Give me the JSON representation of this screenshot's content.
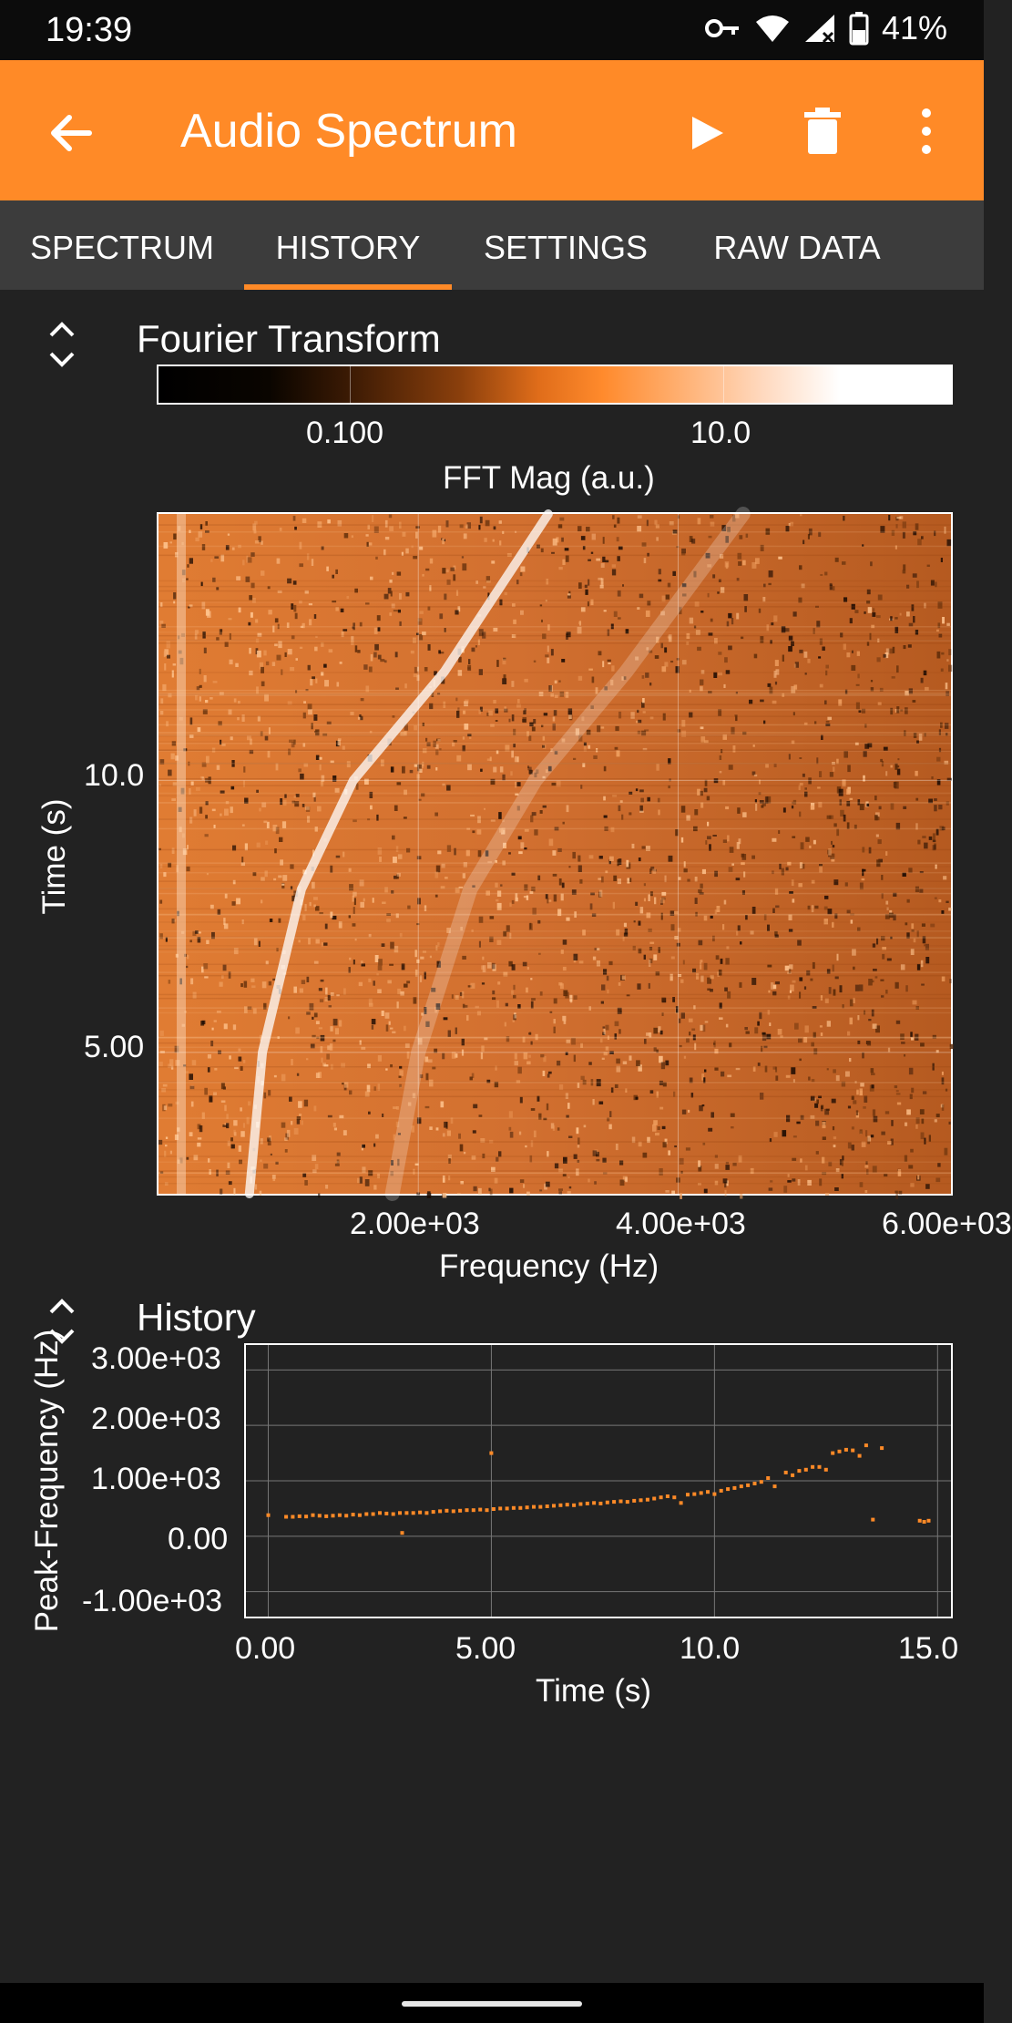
{
  "status_bar": {
    "time": "19:39",
    "battery": "41%",
    "icons": [
      "key-icon",
      "wifi-icon",
      "signal-icon",
      "battery-icon"
    ]
  },
  "app_bar": {
    "title": "Audio Spectrum",
    "background": "#ff8a27",
    "icons": [
      "back-arrow-icon",
      "play-icon",
      "trash-icon",
      "more-vert-icon"
    ]
  },
  "tabs": [
    {
      "label": "SPECTRUM",
      "active": false
    },
    {
      "label": "HISTORY",
      "active": true
    },
    {
      "label": "SETTINGS",
      "active": false
    },
    {
      "label": "RAW DATA",
      "active": false
    }
  ],
  "fourier": {
    "title": "Fourier Transform",
    "colorbar_label": "FFT Mag (a.u.)",
    "colorbar_ticks": [
      "0.100",
      "10.0"
    ],
    "xlabel": "Frequency (Hz)",
    "ylabel": "Time (s)",
    "xticks": [
      "2.00e+03",
      "4.00e+03",
      "6.00e+03"
    ],
    "yticks": [
      "10.0",
      "5.00"
    ]
  },
  "history": {
    "title": "History",
    "xlabel": "Time (s)",
    "ylabel": "Peak-Frequency (Hz)",
    "xticks": [
      "0.00",
      "5.00",
      "10.0",
      "15.0"
    ],
    "yticks": [
      "3.00e+03",
      "2.00e+03",
      "1.00e+03",
      "0.00",
      "-1.00e+03"
    ]
  },
  "chart_data": [
    {
      "type": "heatmap",
      "title": "Fourier Transform",
      "xlabel": "Frequency (Hz)",
      "ylabel": "Time (s)",
      "colorbar_label": "FFT Mag (a.u.)",
      "xlim": [
        0,
        6100
      ],
      "ylim": [
        2.4,
        14.9
      ],
      "colormap": [
        "#000000",
        "#8a3f0c",
        "#ff8a2c",
        "#ffffff"
      ],
      "ridges_hz_vs_time": [
        {
          "t": [
            2.4,
            5,
            8,
            10,
            12,
            14.9
          ],
          "f": [
            700,
            800,
            1100,
            1500,
            2200,
            3000
          ]
        },
        {
          "t": [
            2.4,
            5,
            8,
            10,
            12,
            14.9
          ],
          "f": [
            1800,
            2000,
            2400,
            2900,
            3600,
            4500
          ]
        }
      ]
    },
    {
      "type": "scatter",
      "title": "History",
      "xlabel": "Time (s)",
      "ylabel": "Peak-Frequency (Hz)",
      "xlim": [
        -0.5,
        15.3
      ],
      "ylim": [
        -1450,
        3450
      ],
      "color": "#ff8a27",
      "points": [
        [
          0.0,
          380
        ],
        [
          0.4,
          350
        ],
        [
          0.55,
          350
        ],
        [
          0.7,
          360
        ],
        [
          0.85,
          355
        ],
        [
          1.0,
          380
        ],
        [
          1.15,
          370
        ],
        [
          1.3,
          360
        ],
        [
          1.45,
          370
        ],
        [
          1.6,
          380
        ],
        [
          1.75,
          370
        ],
        [
          1.9,
          390
        ],
        [
          2.05,
          380
        ],
        [
          2.2,
          400
        ],
        [
          2.35,
          400
        ],
        [
          2.5,
          420
        ],
        [
          2.65,
          410
        ],
        [
          2.8,
          400
        ],
        [
          2.95,
          420
        ],
        [
          3.1,
          420
        ],
        [
          3.0,
          60
        ],
        [
          3.25,
          420
        ],
        [
          3.4,
          430
        ],
        [
          3.55,
          420
        ],
        [
          3.7,
          440
        ],
        [
          3.85,
          450
        ],
        [
          4.0,
          460
        ],
        [
          4.15,
          450
        ],
        [
          4.3,
          460
        ],
        [
          4.45,
          470
        ],
        [
          4.6,
          470
        ],
        [
          4.75,
          480
        ],
        [
          4.9,
          470
        ],
        [
          5.0,
          1500
        ],
        [
          5.05,
          490
        ],
        [
          5.2,
          500
        ],
        [
          5.35,
          500
        ],
        [
          5.5,
          510
        ],
        [
          5.65,
          510
        ],
        [
          5.8,
          520
        ],
        [
          5.95,
          530
        ],
        [
          6.1,
          530
        ],
        [
          6.25,
          540
        ],
        [
          6.4,
          550
        ],
        [
          6.55,
          560
        ],
        [
          6.7,
          570
        ],
        [
          6.85,
          560
        ],
        [
          7.0,
          580
        ],
        [
          7.15,
          590
        ],
        [
          7.3,
          600
        ],
        [
          7.45,
          590
        ],
        [
          7.6,
          610
        ],
        [
          7.75,
          620
        ],
        [
          7.9,
          630
        ],
        [
          8.05,
          620
        ],
        [
          8.2,
          640
        ],
        [
          8.35,
          650
        ],
        [
          8.5,
          660
        ],
        [
          8.65,
          680
        ],
        [
          8.8,
          700
        ],
        [
          8.95,
          720
        ],
        [
          9.1,
          700
        ],
        [
          9.25,
          600
        ],
        [
          9.4,
          750
        ],
        [
          9.55,
          760
        ],
        [
          9.7,
          780
        ],
        [
          9.85,
          800
        ],
        [
          10.0,
          760
        ],
        [
          10.15,
          820
        ],
        [
          10.3,
          850
        ],
        [
          10.45,
          870
        ],
        [
          10.6,
          900
        ],
        [
          10.75,
          920
        ],
        [
          10.9,
          950
        ],
        [
          11.05,
          980
        ],
        [
          11.2,
          1050
        ],
        [
          11.35,
          900
        ],
        [
          11.6,
          1150
        ],
        [
          11.75,
          1100
        ],
        [
          11.9,
          1180
        ],
        [
          12.05,
          1200
        ],
        [
          12.2,
          1250
        ],
        [
          12.35,
          1250
        ],
        [
          12.5,
          1200
        ],
        [
          12.65,
          1500
        ],
        [
          12.8,
          1530
        ],
        [
          12.95,
          1560
        ],
        [
          13.1,
          1550
        ],
        [
          13.25,
          1450
        ],
        [
          13.4,
          1640
        ],
        [
          13.55,
          300
        ],
        [
          13.75,
          1590
        ],
        [
          14.6,
          280
        ],
        [
          14.7,
          260
        ],
        [
          14.8,
          280
        ]
      ]
    }
  ]
}
